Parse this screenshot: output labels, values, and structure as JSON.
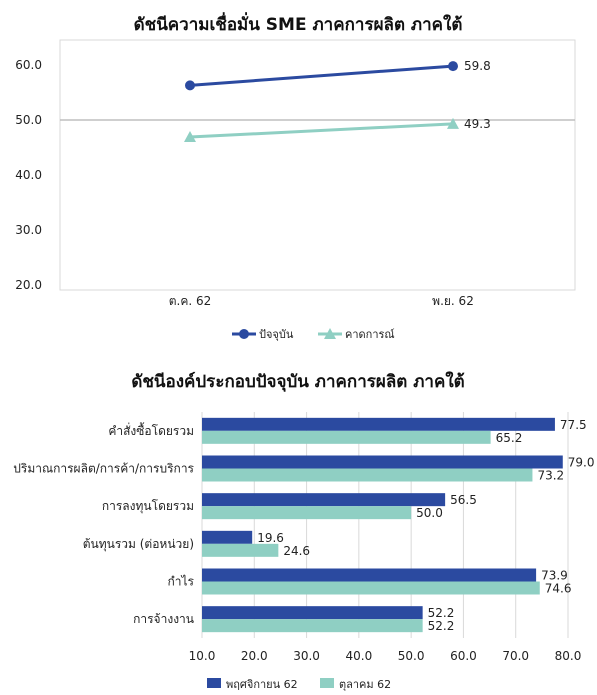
{
  "colors": {
    "current": "#2b4aa0",
    "expected": "#8fcfc3",
    "grid": "#d9d9d9",
    "reference": "#bfbfbf"
  },
  "chart_data": [
    {
      "type": "line",
      "title": "ดัชนีความเชื่อมั่น SME ภาคการผลิต ภาคใต้",
      "categories": [
        "ต.ค. 62",
        "พ.ย. 62"
      ],
      "ylim": [
        20,
        60
      ],
      "yticks": [
        "60.0",
        "50.0",
        "40.0",
        "30.0",
        "20.0"
      ],
      "reference_line": 50,
      "series": [
        {
          "name": "ปัจจุบัน",
          "values": [
            56.3,
            59.8
          ],
          "labels": [
            "",
            "59.8"
          ],
          "marker": "circle"
        },
        {
          "name": "คาดการณ์",
          "values": [
            46.9,
            49.3
          ],
          "labels": [
            "",
            "49.3"
          ],
          "marker": "triangle"
        }
      ],
      "legend": "bottom"
    },
    {
      "type": "bar",
      "orientation": "horizontal",
      "title": "ดัชนีองค์ประกอบปัจจุบัน ภาคการผลิต ภาคใต้",
      "categories": [
        "คำสั่งซื้อโดยรวม",
        "ปริมาณการผลิต/การค้า/การบริการ",
        "การลงทุนโดยรวม",
        "ต้นทุนรวม (ต่อหน่วย)",
        "กำไร",
        "การจ้างงาน"
      ],
      "xlim": [
        10,
        80
      ],
      "xticks": [
        "10.0",
        "20.0",
        "30.0",
        "40.0",
        "50.0",
        "60.0",
        "70.0",
        "80.0"
      ],
      "series": [
        {
          "name": "พฤศจิกายน 62",
          "values": [
            77.5,
            79.0,
            56.5,
            19.6,
            73.9,
            52.2
          ],
          "labels": [
            "77.5",
            "79.0",
            "56.5",
            "19.6",
            "73.9",
            "52.2"
          ]
        },
        {
          "name": "ตุลาคม 62",
          "values": [
            65.2,
            73.2,
            50.0,
            24.6,
            74.6,
            52.2
          ],
          "labels": [
            "65.2",
            "73.2",
            "50.0",
            "24.6",
            "74.6",
            "52.2"
          ]
        }
      ],
      "legend": "bottom"
    }
  ]
}
